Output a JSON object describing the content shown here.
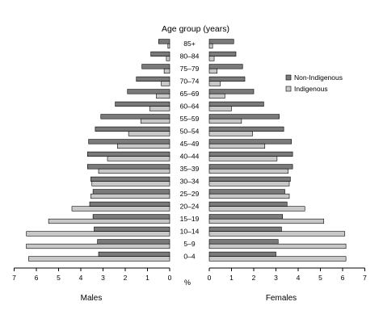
{
  "chart_data": {
    "type": "bar",
    "orientation": "horizontal",
    "layout": "population-pyramid",
    "title": "Age group (years)",
    "x_unit": "%",
    "left_panel_label": "Males",
    "right_panel_label": "Females",
    "xlim": [
      0,
      7
    ],
    "x_ticks": [
      "0",
      "1",
      "2",
      "3",
      "4",
      "5",
      "6",
      "7"
    ],
    "left_axis_ticks": [
      "7",
      "6",
      "5",
      "4",
      "3",
      "2",
      "1",
      "0"
    ],
    "right_axis_ticks": [
      "0",
      "1",
      "2",
      "3",
      "4",
      "5",
      "6",
      "7"
    ],
    "categories": [
      "85+",
      "80–84",
      "75–79",
      "70–74",
      "65–69",
      "60–64",
      "55–59",
      "50–54",
      "45–49",
      "40–44",
      "35–39",
      "30–34",
      "25–29",
      "20–24",
      "15–19",
      "10–14",
      "5–9",
      "0–4"
    ],
    "legend": {
      "placement": "right",
      "entries": [
        "Non-Indigenous",
        "Indigenous"
      ]
    },
    "colors": {
      "Non-Indigenous": "#7a7a7a",
      "Indigenous": "#c8c8c8",
      "outline": "#000000"
    },
    "series": [
      {
        "name": "Non-Indigenous",
        "males": [
          0.5,
          0.85,
          1.25,
          1.5,
          1.9,
          2.45,
          3.1,
          3.35,
          3.65,
          3.7,
          3.7,
          3.55,
          3.45,
          3.6,
          3.45,
          3.4,
          3.25,
          3.2
        ],
        "females": [
          1.1,
          1.2,
          1.5,
          1.6,
          2.0,
          2.45,
          3.15,
          3.35,
          3.7,
          3.75,
          3.75,
          3.65,
          3.4,
          3.5,
          3.3,
          3.25,
          3.1,
          3.0
        ]
      },
      {
        "name": "Indigenous",
        "males": [
          0.08,
          0.15,
          0.25,
          0.38,
          0.6,
          0.9,
          1.3,
          1.85,
          2.35,
          2.8,
          3.2,
          3.5,
          3.55,
          4.4,
          5.45,
          6.45,
          6.45,
          6.35
        ],
        "females": [
          0.15,
          0.22,
          0.35,
          0.5,
          0.7,
          1.0,
          1.45,
          1.95,
          2.5,
          3.05,
          3.55,
          3.6,
          3.6,
          4.3,
          5.15,
          6.1,
          6.15,
          6.15
        ]
      }
    ]
  }
}
